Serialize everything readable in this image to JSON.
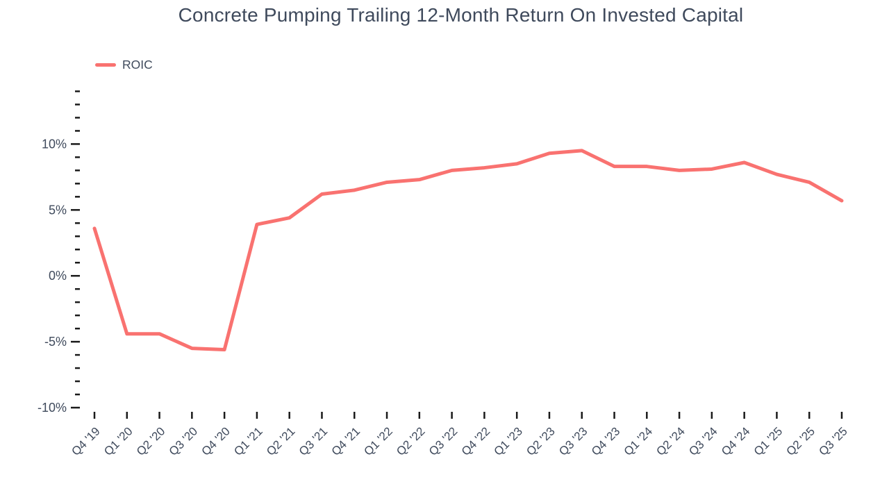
{
  "title": "Concrete Pumping Trailing 12-Month Return On Invested Capital",
  "legend": {
    "position": "top-left",
    "items": [
      {
        "label": "ROIC",
        "color": "#f97270"
      }
    ]
  },
  "colors": {
    "accent_line": "#f97270",
    "text": "#3f4a5c",
    "tick": "#1a1a1a",
    "background": "#ffffff"
  },
  "chart_data": {
    "type": "line",
    "title": "Concrete Pumping Trailing 12-Month Return On Invested Capital",
    "categories": [
      "Q4 '19",
      "Q1 '20",
      "Q2 '20",
      "Q3 '20",
      "Q4 '20",
      "Q1 '21",
      "Q2 '21",
      "Q3 '21",
      "Q4 '21",
      "Q1 '22",
      "Q2 '22",
      "Q3 '22",
      "Q4 '22",
      "Q1 '23",
      "Q2 '23",
      "Q3 '23",
      "Q4 '23",
      "Q1 '24",
      "Q2 '24",
      "Q3 '24",
      "Q4 '24",
      "Q1 '25",
      "Q2 '25",
      "Q3 '25"
    ],
    "series": [
      {
        "name": "ROIC",
        "color": "#f97270",
        "values": [
          3.6,
          -4.4,
          -4.4,
          -5.5,
          -5.6,
          3.9,
          4.4,
          6.2,
          6.5,
          7.1,
          7.3,
          8.0,
          8.2,
          8.5,
          9.3,
          9.5,
          8.3,
          8.3,
          8.0,
          8.1,
          8.6,
          7.7,
          7.1,
          5.7
        ]
      }
    ],
    "xlabel": "",
    "ylabel": "",
    "unit": "%",
    "ylim": [
      -10,
      14
    ],
    "y_minor_step": 1,
    "y_major_step": 5,
    "y_ticks": [
      {
        "value": 10,
        "label": "10%"
      },
      {
        "value": 5,
        "label": "5%"
      },
      {
        "value": 0,
        "label": "0%"
      },
      {
        "value": -5,
        "label": "-5%"
      },
      {
        "value": -10,
        "label": "-10%"
      }
    ],
    "grid": false,
    "legend_position": "top-left"
  }
}
